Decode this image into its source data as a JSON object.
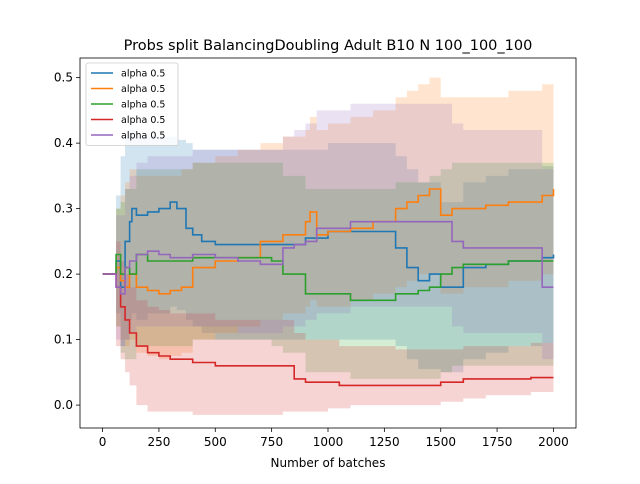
{
  "chart_data": {
    "type": "line",
    "title": "Probs split BalancingDoubling Adult B10 N 100_100_100",
    "xlabel": "Number of batches",
    "ylabel": "",
    "xlim": [
      -100,
      2100
    ],
    "ylim": [
      -0.035,
      0.53
    ],
    "xticks": [
      0,
      250,
      500,
      750,
      1000,
      1250,
      1500,
      1750,
      2000
    ],
    "yticks": [
      0.0,
      0.1,
      0.2,
      0.3,
      0.4,
      0.5
    ],
    "xtick_labels": [
      "0",
      "250",
      "500",
      "750",
      "1000",
      "1250",
      "1500",
      "1750",
      "2000"
    ],
    "ytick_labels": [
      "0.0",
      "0.1",
      "0.2",
      "0.3",
      "0.4",
      "0.5"
    ],
    "grid": false,
    "legend_position": "top-left",
    "series": [
      {
        "name": "alpha 0.5",
        "color": "#1f77b4",
        "x": [
          0,
          40,
          60,
          80,
          100,
          120,
          130,
          150,
          200,
          250,
          300,
          330,
          370,
          400,
          440,
          500,
          700,
          900,
          1000,
          1100,
          1200,
          1250,
          1300,
          1350,
          1400,
          1450,
          1500,
          1600,
          1700,
          1800,
          1900,
          1950,
          2000
        ],
        "y": [
          0.2,
          0.2,
          0.22,
          0.18,
          0.25,
          0.28,
          0.3,
          0.29,
          0.295,
          0.3,
          0.31,
          0.3,
          0.27,
          0.26,
          0.25,
          0.245,
          0.245,
          0.255,
          0.265,
          0.265,
          0.265,
          0.265,
          0.24,
          0.21,
          0.19,
          0.2,
          0.18,
          0.21,
          0.215,
          0.22,
          0.22,
          0.225,
          0.23
        ],
        "lower": [
          0.2,
          0.2,
          0.14,
          0.09,
          0.1,
          0.13,
          0.14,
          0.13,
          0.14,
          0.14,
          0.15,
          0.145,
          0.13,
          0.12,
          0.11,
          0.1,
          0.1,
          0.1,
          0.1,
          0.1,
          0.1,
          0.1,
          0.09,
          0.07,
          0.055,
          0.055,
          0.05,
          0.07,
          0.08,
          0.09,
          0.09,
          0.095,
          0.1
        ],
        "upper": [
          0.2,
          0.2,
          0.32,
          0.38,
          0.41,
          0.42,
          0.42,
          0.41,
          0.41,
          0.41,
          0.41,
          0.405,
          0.4,
          0.39,
          0.39,
          0.39,
          0.39,
          0.39,
          0.4,
          0.4,
          0.4,
          0.4,
          0.38,
          0.36,
          0.34,
          0.34,
          0.31,
          0.34,
          0.35,
          0.36,
          0.36,
          0.365,
          0.37
        ]
      },
      {
        "name": "alpha 0.5",
        "color": "#ff7f0e",
        "x": [
          0,
          40,
          60,
          80,
          100,
          120,
          150,
          200,
          250,
          300,
          350,
          400,
          500,
          600,
          700,
          750,
          800,
          850,
          900,
          920,
          950,
          1000,
          1100,
          1200,
          1300,
          1350,
          1400,
          1450,
          1500,
          1550,
          1600,
          1700,
          1800,
          1900,
          1950,
          2000
        ],
        "y": [
          0.2,
          0.2,
          0.21,
          0.19,
          0.18,
          0.2,
          0.18,
          0.175,
          0.17,
          0.175,
          0.18,
          0.21,
          0.22,
          0.225,
          0.25,
          0.25,
          0.26,
          0.26,
          0.28,
          0.295,
          0.26,
          0.265,
          0.27,
          0.28,
          0.3,
          0.31,
          0.32,
          0.33,
          0.29,
          0.3,
          0.3,
          0.305,
          0.31,
          0.31,
          0.32,
          0.33
        ],
        "lower": [
          0.2,
          0.2,
          0.12,
          0.1,
          0.09,
          0.1,
          0.08,
          0.075,
          0.07,
          0.075,
          0.08,
          0.1,
          0.11,
          0.12,
          0.13,
          0.13,
          0.14,
          0.14,
          0.15,
          0.16,
          0.15,
          0.15,
          0.16,
          0.17,
          0.18,
          0.19,
          0.2,
          0.2,
          0.17,
          0.17,
          0.18,
          0.18,
          0.19,
          0.19,
          0.2,
          0.21
        ],
        "upper": [
          0.2,
          0.2,
          0.3,
          0.32,
          0.34,
          0.36,
          0.35,
          0.35,
          0.35,
          0.35,
          0.36,
          0.37,
          0.38,
          0.39,
          0.4,
          0.4,
          0.41,
          0.41,
          0.42,
          0.44,
          0.42,
          0.43,
          0.44,
          0.45,
          0.47,
          0.48,
          0.49,
          0.5,
          0.47,
          0.47,
          0.47,
          0.47,
          0.48,
          0.48,
          0.49,
          0.49
        ]
      },
      {
        "name": "alpha 0.5",
        "color": "#2ca02c",
        "x": [
          0,
          40,
          60,
          80,
          100,
          120,
          150,
          200,
          300,
          400,
          500,
          600,
          700,
          750,
          800,
          850,
          900,
          950,
          1000,
          1100,
          1200,
          1300,
          1400,
          1450,
          1500,
          1550,
          1600,
          1700,
          1800,
          1900,
          2000
        ],
        "y": [
          0.2,
          0.2,
          0.23,
          0.2,
          0.21,
          0.2,
          0.23,
          0.22,
          0.22,
          0.225,
          0.225,
          0.225,
          0.225,
          0.22,
          0.2,
          0.2,
          0.17,
          0.17,
          0.17,
          0.16,
          0.16,
          0.17,
          0.175,
          0.18,
          0.2,
          0.21,
          0.215,
          0.215,
          0.22,
          0.22,
          0.22
        ],
        "lower": [
          0.2,
          0.2,
          0.12,
          0.08,
          0.07,
          0.07,
          0.09,
          0.09,
          0.09,
          0.1,
          0.1,
          0.1,
          0.1,
          0.09,
          0.08,
          0.08,
          0.05,
          0.05,
          0.05,
          0.04,
          0.04,
          0.04,
          0.04,
          0.04,
          0.05,
          0.06,
          0.06,
          0.06,
          0.06,
          0.06,
          0.06
        ],
        "upper": [
          0.2,
          0.2,
          0.3,
          0.31,
          0.33,
          0.33,
          0.36,
          0.36,
          0.36,
          0.37,
          0.37,
          0.37,
          0.37,
          0.37,
          0.35,
          0.35,
          0.33,
          0.33,
          0.33,
          0.33,
          0.33,
          0.34,
          0.34,
          0.35,
          0.36,
          0.37,
          0.37,
          0.37,
          0.37,
          0.37,
          0.37
        ]
      },
      {
        "name": "alpha 0.5",
        "color": "#d62728",
        "x": [
          0,
          40,
          60,
          80,
          100,
          120,
          150,
          200,
          250,
          300,
          400,
          500,
          600,
          700,
          800,
          850,
          900,
          1000,
          1050,
          1100,
          1200,
          1300,
          1400,
          1500,
          1600,
          1700,
          1800,
          1900,
          2000
        ],
        "y": [
          0.2,
          0.2,
          0.18,
          0.15,
          0.13,
          0.11,
          0.09,
          0.08,
          0.075,
          0.07,
          0.065,
          0.06,
          0.06,
          0.06,
          0.06,
          0.04,
          0.035,
          0.035,
          0.03,
          0.03,
          0.03,
          0.03,
          0.03,
          0.035,
          0.04,
          0.04,
          0.04,
          0.042,
          0.042
        ],
        "lower": [
          0.2,
          0.2,
          0.09,
          0.07,
          0.05,
          0.03,
          0.0,
          -0.01,
          -0.01,
          -0.01,
          -0.015,
          -0.015,
          -0.015,
          -0.015,
          -0.01,
          -0.01,
          -0.01,
          -0.005,
          -0.005,
          0.0,
          0.0,
          0.0,
          0.0,
          0.005,
          0.01,
          0.015,
          0.015,
          0.02,
          0.02
        ],
        "upper": [
          0.2,
          0.2,
          0.25,
          0.22,
          0.2,
          0.18,
          0.16,
          0.15,
          0.145,
          0.14,
          0.14,
          0.13,
          0.13,
          0.13,
          0.13,
          0.11,
          0.1,
          0.1,
          0.09,
          0.09,
          0.09,
          0.085,
          0.085,
          0.085,
          0.09,
          0.09,
          0.09,
          0.095,
          0.095
        ]
      },
      {
        "name": "alpha 0.5",
        "color": "#9467bd",
        "x": [
          0,
          40,
          60,
          80,
          100,
          120,
          150,
          200,
          250,
          300,
          400,
          500,
          600,
          700,
          800,
          850,
          900,
          950,
          1000,
          1100,
          1200,
          1300,
          1400,
          1450,
          1500,
          1550,
          1600,
          1700,
          1800,
          1900,
          1950,
          2000
        ],
        "y": [
          0.2,
          0.2,
          0.18,
          0.17,
          0.21,
          0.22,
          0.23,
          0.235,
          0.23,
          0.225,
          0.23,
          0.225,
          0.22,
          0.215,
          0.24,
          0.245,
          0.25,
          0.27,
          0.27,
          0.28,
          0.28,
          0.28,
          0.28,
          0.28,
          0.28,
          0.25,
          0.24,
          0.24,
          0.24,
          0.24,
          0.18,
          0.18
        ],
        "lower": [
          0.2,
          0.2,
          0.1,
          0.09,
          0.1,
          0.11,
          0.12,
          0.12,
          0.12,
          0.12,
          0.12,
          0.12,
          0.11,
          0.11,
          0.12,
          0.12,
          0.13,
          0.14,
          0.14,
          0.15,
          0.15,
          0.15,
          0.15,
          0.15,
          0.15,
          0.12,
          0.11,
          0.11,
          0.11,
          0.11,
          0.07,
          0.07
        ],
        "upper": [
          0.2,
          0.2,
          0.29,
          0.29,
          0.33,
          0.35,
          0.37,
          0.38,
          0.38,
          0.38,
          0.39,
          0.39,
          0.39,
          0.39,
          0.41,
          0.42,
          0.43,
          0.45,
          0.45,
          0.46,
          0.46,
          0.46,
          0.46,
          0.46,
          0.46,
          0.43,
          0.42,
          0.42,
          0.42,
          0.42,
          0.36,
          0.36
        ]
      }
    ]
  }
}
